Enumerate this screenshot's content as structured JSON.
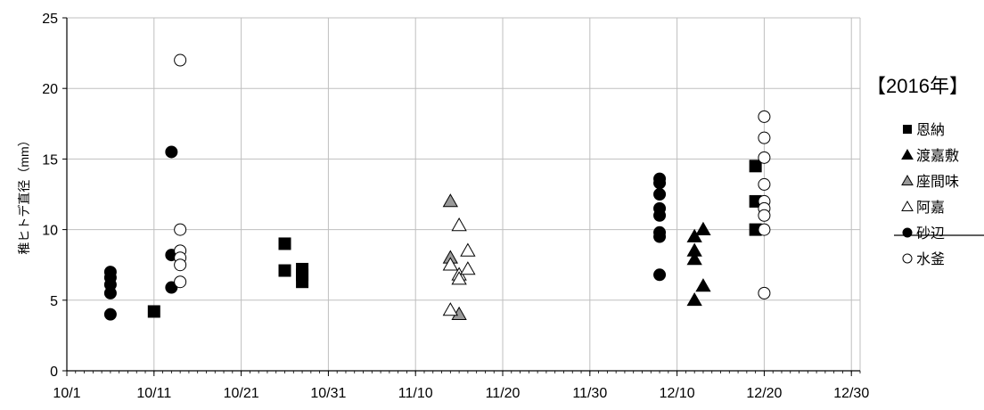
{
  "chart_data": {
    "type": "scatter",
    "title": "",
    "year_label": "【2016年】",
    "xlabel": "",
    "ylabel": "稚ヒトデ直径（mm）",
    "xlim": [
      "2016-10-01",
      "2016-12-31"
    ],
    "ylim": [
      0,
      25
    ],
    "x_ticks": [
      "10/1",
      "10/11",
      "10/21",
      "10/31",
      "11/10",
      "11/20",
      "11/30",
      "12/10",
      "12/20",
      "12/30"
    ],
    "x_tick_dates": [
      "2016-10-01",
      "2016-10-11",
      "2016-10-21",
      "2016-10-31",
      "2016-11-10",
      "2016-11-20",
      "2016-11-30",
      "2016-12-10",
      "2016-12-20",
      "2016-12-30"
    ],
    "y_ticks": [
      "0",
      "5",
      "10",
      "15",
      "20",
      "25"
    ],
    "y_tick_values": [
      0,
      5,
      10,
      15,
      20,
      25
    ],
    "grid": true,
    "legend_position": "right",
    "colors": {
      "black": "#000000",
      "gray": "#999999",
      "white": "#ffffff",
      "grid": "#bfbfbf"
    },
    "series": [
      {
        "name": "恩納",
        "marker": "square",
        "fill": "#000000",
        "points": [
          {
            "x": "2016-10-11",
            "y": 4.2
          },
          {
            "x": "2016-10-26",
            "y": 9.0
          },
          {
            "x": "2016-10-26",
            "y": 7.1
          },
          {
            "x": "2016-10-28",
            "y": 7.2
          },
          {
            "x": "2016-10-28",
            "y": 6.8
          },
          {
            "x": "2016-10-28",
            "y": 6.3
          },
          {
            "x": "2016-12-19",
            "y": 14.5
          },
          {
            "x": "2016-12-19",
            "y": 12.0
          },
          {
            "x": "2016-12-19",
            "y": 10.0
          }
        ]
      },
      {
        "name": "渡嘉敷",
        "marker": "triangle",
        "fill": "#000000",
        "points": [
          {
            "x": "2016-12-12",
            "y": 9.5
          },
          {
            "x": "2016-12-12",
            "y": 8.5
          },
          {
            "x": "2016-12-12",
            "y": 7.9
          },
          {
            "x": "2016-12-12",
            "y": 5.0
          },
          {
            "x": "2016-12-13",
            "y": 10.0
          },
          {
            "x": "2016-12-13",
            "y": 6.0
          }
        ]
      },
      {
        "name": "座間味",
        "marker": "triangle",
        "fill": "#999999",
        "points": [
          {
            "x": "2016-11-14",
            "y": 12.0
          },
          {
            "x": "2016-11-14",
            "y": 8.0
          },
          {
            "x": "2016-11-15",
            "y": 4.0
          }
        ]
      },
      {
        "name": "阿嘉",
        "marker": "triangle",
        "fill": "#ffffff",
        "points": [
          {
            "x": "2016-11-14",
            "y": 7.5
          },
          {
            "x": "2016-11-14",
            "y": 4.3
          },
          {
            "x": "2016-11-15",
            "y": 10.3
          },
          {
            "x": "2016-11-15",
            "y": 6.8
          },
          {
            "x": "2016-11-15",
            "y": 6.5
          },
          {
            "x": "2016-11-16",
            "y": 8.5
          },
          {
            "x": "2016-11-16",
            "y": 7.2
          }
        ]
      },
      {
        "name": "砂辺",
        "marker": "circle",
        "fill": "#000000",
        "points": [
          {
            "x": "2016-10-06",
            "y": 7.0
          },
          {
            "x": "2016-10-06",
            "y": 6.6
          },
          {
            "x": "2016-10-06",
            "y": 6.1
          },
          {
            "x": "2016-10-06",
            "y": 5.5
          },
          {
            "x": "2016-10-06",
            "y": 4.0
          },
          {
            "x": "2016-10-13",
            "y": 15.5
          },
          {
            "x": "2016-10-13",
            "y": 8.2
          },
          {
            "x": "2016-10-13",
            "y": 5.9
          },
          {
            "x": "2016-12-08",
            "y": 13.6
          },
          {
            "x": "2016-12-08",
            "y": 13.3
          },
          {
            "x": "2016-12-08",
            "y": 12.5
          },
          {
            "x": "2016-12-08",
            "y": 11.5
          },
          {
            "x": "2016-12-08",
            "y": 11.0
          },
          {
            "x": "2016-12-08",
            "y": 9.8
          },
          {
            "x": "2016-12-08",
            "y": 9.5
          },
          {
            "x": "2016-12-08",
            "y": 6.8
          }
        ]
      },
      {
        "name": "水釜",
        "marker": "circle",
        "fill": "#ffffff",
        "points": [
          {
            "x": "2016-10-14",
            "y": 22.0
          },
          {
            "x": "2016-10-14",
            "y": 10.0
          },
          {
            "x": "2016-10-14",
            "y": 8.5
          },
          {
            "x": "2016-10-14",
            "y": 8.0
          },
          {
            "x": "2016-10-14",
            "y": 7.5
          },
          {
            "x": "2016-10-14",
            "y": 6.3
          },
          {
            "x": "2016-12-20",
            "y": 18.0
          },
          {
            "x": "2016-12-20",
            "y": 16.5
          },
          {
            "x": "2016-12-20",
            "y": 15.1
          },
          {
            "x": "2016-12-20",
            "y": 13.2
          },
          {
            "x": "2016-12-20",
            "y": 12.0
          },
          {
            "x": "2016-12-20",
            "y": 11.5
          },
          {
            "x": "2016-12-20",
            "y": 11.0
          },
          {
            "x": "2016-12-20",
            "y": 10.0
          },
          {
            "x": "2016-12-20",
            "y": 5.5
          }
        ]
      }
    ]
  }
}
